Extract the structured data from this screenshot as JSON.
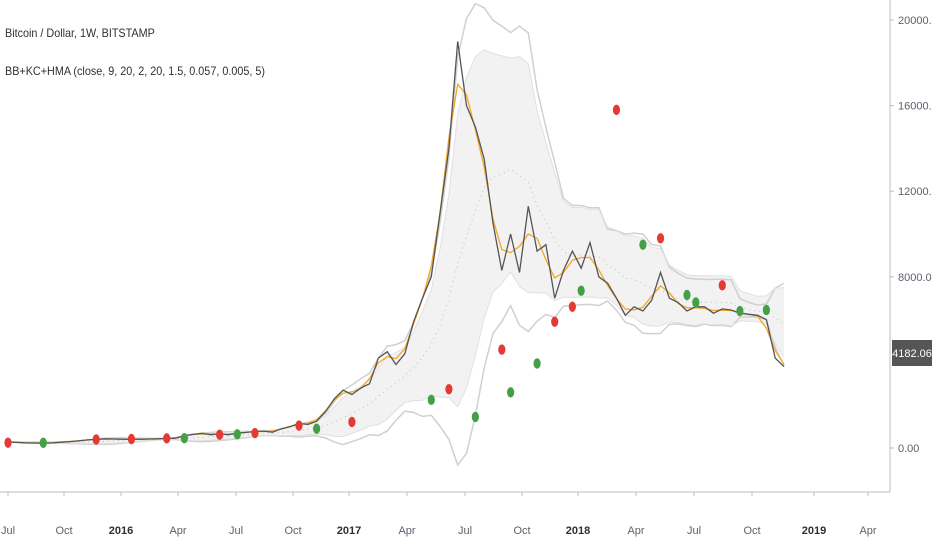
{
  "chart_data": {
    "type": "line",
    "title": "Bitcoin / Dollar, 1W, BITSTAMP",
    "indicator": "BB+KC+HMA (close, 9, 20, 2, 20, 1.5, 0.057, 0.005, 5)",
    "ylim": [
      -1200,
      20500
    ],
    "y_ticks": [
      "20000.00",
      "16000.00",
      "12000.00",
      "8000.00",
      "0.00"
    ],
    "x_ticks": [
      "Jul",
      "Oct",
      "2016",
      "Apr",
      "Jul",
      "Oct",
      "2017",
      "Apr",
      "Jul",
      "Oct",
      "2018",
      "Apr",
      "Jul",
      "Oct",
      "2019",
      "Apr"
    ],
    "last_value_label": "4182.06",
    "colors": {
      "price": "#555555",
      "hma": "#f5a623",
      "band": "#d0d0d0",
      "band_fill": "#f2f2f2",
      "sell_marker": "#e53935",
      "buy_marker": "#43a047",
      "last_label_bg": "#555555"
    },
    "series": [
      {
        "values": [
          280,
          260,
          240,
          235,
          230,
          240,
          270,
          300,
          330,
          380,
          400,
          430,
          420,
          410,
          400,
          410,
          420,
          430,
          450,
          460,
          580,
          640,
          680,
          620,
          660,
          620,
          700,
          730,
          770,
          790,
          740,
          900,
          1000,
          1150,
          1100,
          1250,
          1700,
          2300,
          2700,
          2500,
          2800,
          3000,
          4200,
          4500,
          3900,
          4400,
          5900,
          7000,
          8000,
          11000,
          14000,
          19000,
          16000,
          15000,
          13500,
          10500,
          8300,
          10000,
          8200,
          11300,
          9200,
          9500,
          7000,
          8300,
          9200,
          8400,
          9600,
          8000,
          7700,
          7000,
          6200,
          6600,
          6400,
          6900,
          8200,
          7000,
          6800,
          6400,
          6600,
          6600,
          6300,
          6500,
          6450,
          6300,
          6250,
          6200,
          6000,
          4200,
          3800
        ]
      }
    ],
    "markers": {
      "sell": [
        [
          0,
          250
        ],
        [
          10,
          400
        ],
        [
          14,
          420
        ],
        [
          18,
          450
        ],
        [
          24,
          620
        ],
        [
          28,
          700
        ],
        [
          33,
          1050
        ],
        [
          39,
          1220
        ],
        [
          50,
          2750
        ],
        [
          56,
          4600
        ],
        [
          62,
          5900
        ],
        [
          64,
          6600
        ],
        [
          69,
          15800
        ],
        [
          74,
          9800
        ],
        [
          81,
          7600
        ]
      ],
      "buy": [
        [
          4,
          240
        ],
        [
          20,
          460
        ],
        [
          26,
          640
        ],
        [
          35,
          900
        ],
        [
          48,
          2250
        ],
        [
          53,
          1450
        ],
        [
          57,
          2600
        ],
        [
          60,
          3950
        ],
        [
          65,
          7350
        ],
        [
          72,
          9500
        ],
        [
          77,
          7150
        ],
        [
          78,
          6800
        ],
        [
          83,
          6400
        ],
        [
          86,
          6450
        ]
      ]
    }
  }
}
